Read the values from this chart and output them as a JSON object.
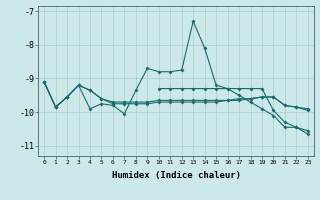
{
  "xlabel": "Humidex (Indice chaleur)",
  "background_color": "#cce8e8",
  "grid_color": "#aacece",
  "line_color": "#1a6b6b",
  "xlim": [
    -0.5,
    23.5
  ],
  "ylim": [
    -11.3,
    -6.85
  ],
  "yticks": [
    -11,
    -10,
    -9,
    -8,
    -7
  ],
  "xticks": [
    0,
    1,
    2,
    3,
    4,
    5,
    6,
    7,
    8,
    9,
    10,
    11,
    12,
    13,
    14,
    15,
    16,
    17,
    18,
    19,
    20,
    21,
    22,
    23
  ],
  "series1_x": [
    0,
    1,
    2,
    3,
    4,
    5,
    6,
    7,
    8,
    9,
    10,
    11,
    12,
    13,
    14,
    15,
    16,
    17,
    18,
    19,
    20,
    21,
    22,
    23
  ],
  "series1_y": [
    -9.1,
    -9.85,
    -9.55,
    -9.2,
    -9.9,
    -9.75,
    -9.8,
    -10.05,
    -9.35,
    -8.7,
    -8.8,
    -8.8,
    -8.75,
    -7.3,
    -8.1,
    -9.2,
    -9.3,
    -9.5,
    -9.7,
    -9.9,
    -10.1,
    -10.45,
    -10.45,
    -10.55
  ],
  "series2_x": [
    0,
    1,
    2,
    3,
    4,
    5,
    6,
    7,
    8,
    9,
    10,
    11,
    12,
    13,
    14,
    15,
    16,
    17,
    18,
    19,
    20,
    21,
    22,
    23
  ],
  "series2_y": [
    -9.1,
    -9.85,
    -9.55,
    -9.2,
    -9.35,
    -9.6,
    -9.7,
    -9.7,
    -9.7,
    -9.7,
    -9.65,
    -9.65,
    -9.65,
    -9.65,
    -9.65,
    -9.65,
    -9.65,
    -9.6,
    -9.6,
    -9.55,
    -9.55,
    -9.8,
    -9.85,
    -9.9
  ],
  "series3_x": [
    0,
    1,
    2,
    3,
    4,
    5,
    6,
    7,
    8,
    9,
    10,
    11,
    12,
    13,
    14,
    15,
    16,
    17,
    18,
    19,
    20,
    21,
    22,
    23
  ],
  "series3_y": [
    -9.1,
    -9.85,
    -9.55,
    -9.2,
    -9.35,
    -9.6,
    -9.75,
    -9.75,
    -9.75,
    -9.75,
    -9.7,
    -9.7,
    -9.7,
    -9.7,
    -9.7,
    -9.7,
    -9.65,
    -9.65,
    -9.6,
    -9.55,
    -9.55,
    -9.8,
    -9.85,
    -9.95
  ],
  "series4_x": [
    10,
    11,
    12,
    13,
    14,
    15,
    16,
    17,
    18,
    19,
    20,
    21,
    22,
    23
  ],
  "series4_y": [
    -9.3,
    -9.3,
    -9.3,
    -9.3,
    -9.3,
    -9.3,
    -9.3,
    -9.3,
    -9.3,
    -9.3,
    -9.95,
    -10.3,
    -10.45,
    -10.65
  ]
}
